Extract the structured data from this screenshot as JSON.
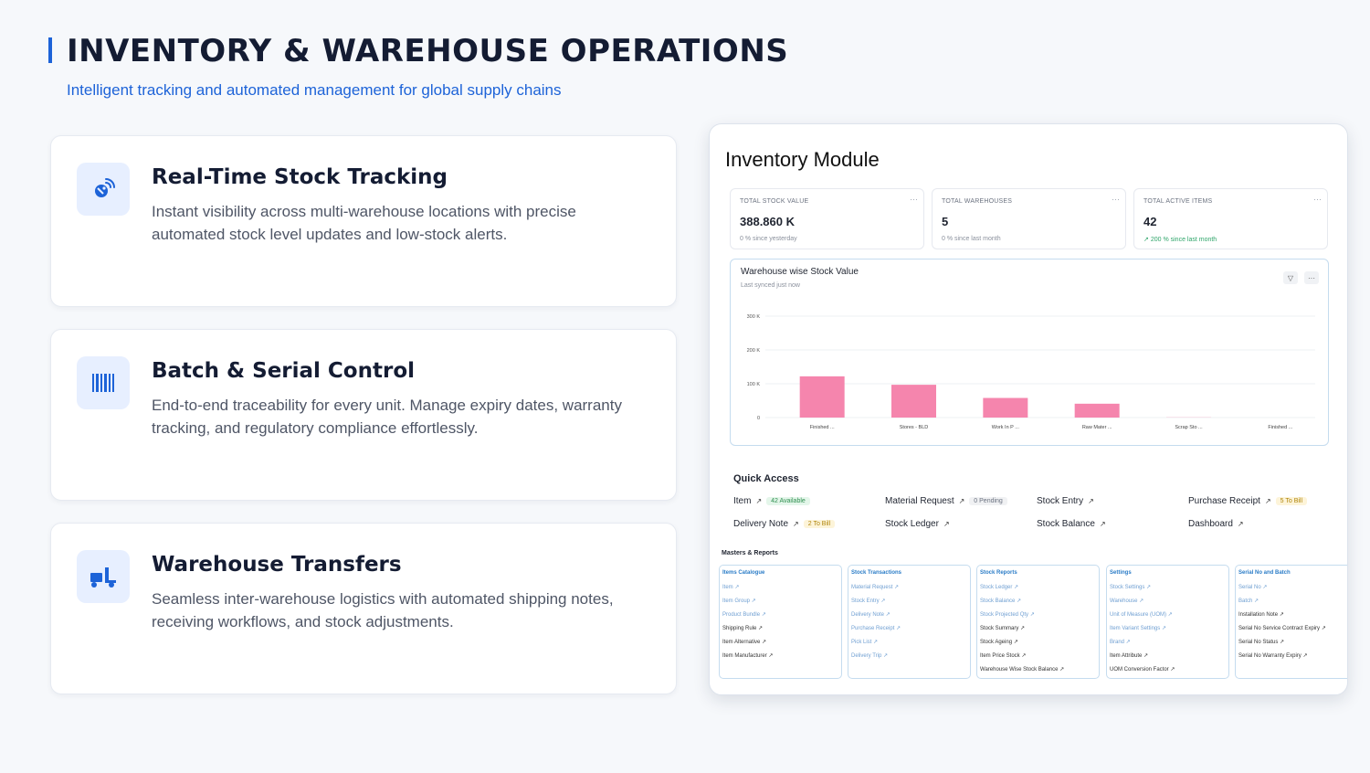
{
  "header": {
    "title": "INVENTORY & WAREHOUSE OPERATIONS",
    "subtitle": "Intelligent tracking and automated management for global supply chains"
  },
  "features": [
    {
      "title": "Real-Time Stock Tracking",
      "description": "Instant visibility across multi-warehouse locations with precise automated stock level updates and low-stock alerts.",
      "icon": "satellite-signal-icon"
    },
    {
      "title": "Batch & Serial Control",
      "description": "End-to-end traceability for every unit. Manage expiry dates, warranty tracking, and regulatory compliance effortlessly.",
      "icon": "barcode-icon"
    },
    {
      "title": "Warehouse Transfers",
      "description": "Seamless inter-warehouse logistics with automated shipping notes, receiving workflows, and stock adjustments.",
      "icon": "truck-loading-icon"
    }
  ],
  "module": {
    "title": "Inventory Module",
    "kpis": [
      {
        "label": "TOTAL STOCK VALUE",
        "value": "388.860 K",
        "sub": "0 % since yesterday"
      },
      {
        "label": "TOTAL WAREHOUSES",
        "value": "5",
        "sub": "0 % since last month"
      },
      {
        "label": "TOTAL ACTIVE ITEMS",
        "value": "42",
        "sub": "200 % since last month"
      }
    ],
    "chart": {
      "title": "Warehouse wise Stock Value",
      "subtitle": "Last synced just now"
    },
    "quick_access": {
      "title": "Quick Access",
      "items": [
        {
          "label": "Item",
          "badge": "42 Available"
        },
        {
          "label": "Material Request",
          "badge": "0 Pending"
        },
        {
          "label": "Stock Entry",
          "badge": ""
        },
        {
          "label": "Purchase Receipt",
          "badge": "5 To Bill"
        },
        {
          "label": "Delivery Note",
          "badge": "2 To Bill"
        },
        {
          "label": "Stock Ledger",
          "badge": ""
        },
        {
          "label": "Stock Balance",
          "badge": ""
        },
        {
          "label": "Dashboard",
          "badge": ""
        }
      ]
    },
    "masters": {
      "title": "Masters & Reports",
      "cards": [
        {
          "title": "Items Catalogue",
          "links": [
            "Item",
            "Item Group",
            "Product Bundle",
            "Shipping Rule",
            "Item Alternative",
            "Item Manufacturer"
          ]
        },
        {
          "title": "Stock Transactions",
          "links": [
            "Material Request",
            "Stock Entry",
            "Delivery Note",
            "Purchase Receipt",
            "Pick List",
            "Delivery Trip"
          ]
        },
        {
          "title": "Stock Reports",
          "links": [
            "Stock Ledger",
            "Stock Balance",
            "Stock Projected Qty",
            "Stock Summary",
            "Stock Ageing",
            "Item Price Stock",
            "Warehouse Wise Stock Balance"
          ]
        },
        {
          "title": "Settings",
          "links": [
            "Stock Settings",
            "Warehouse",
            "Unit of Measure (UOM)",
            "Item Variant Settings",
            "Brand",
            "Item Attribute",
            "UOM Conversion Factor"
          ]
        },
        {
          "title": "Serial No and Batch",
          "links": [
            "Serial No",
            "Batch",
            "Installation Note",
            "Serial No Service Contract Expiry",
            "Serial No Status",
            "Serial No Warranty Expiry"
          ]
        }
      ]
    }
  },
  "chart_data": {
    "type": "bar",
    "title": "Warehouse wise Stock Value",
    "categories": [
      "Finished ...",
      "Stores - BLD",
      "Work In P ...",
      "Raw Mater ...",
      "Scrap Sto ...",
      "Finished ..."
    ],
    "values": [
      122,
      97,
      58,
      41,
      0.5,
      0
    ],
    "ylim": [
      0,
      300
    ],
    "yticks": [
      0,
      100,
      200,
      300
    ],
    "ytick_labels": [
      "0",
      "100 K",
      "200 K",
      "300 K"
    ],
    "bar_color": "#f585ad",
    "grid": true
  },
  "colors": {
    "accent": "#1d63d8",
    "bar": "#f585ad",
    "link_blue": "#6f9fd2",
    "green": "#2fa56a"
  }
}
